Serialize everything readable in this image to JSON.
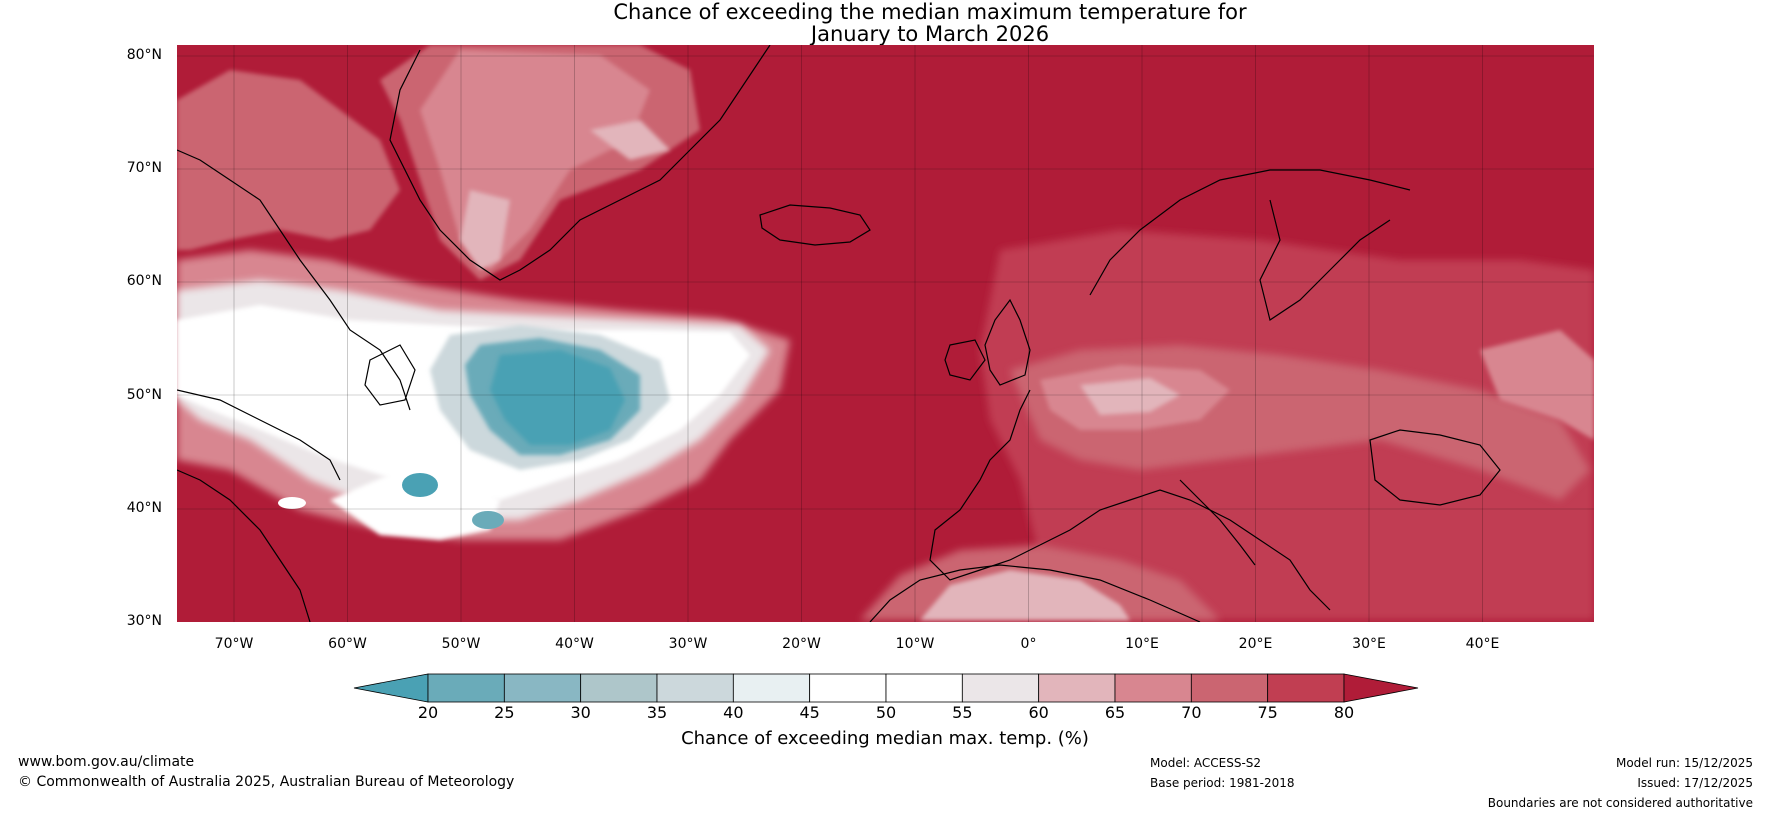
{
  "title": {
    "line1": "Chance of exceeding the median maximum temperature for",
    "line2": "January to March 2026"
  },
  "map": {
    "lat_labels": [
      "80°N",
      "70°N",
      "60°N",
      "50°N",
      "40°N",
      "30°N"
    ],
    "lon_labels": [
      "70°W",
      "60°W",
      "50°W",
      "40°W",
      "30°W",
      "20°W",
      "10°W",
      "0°",
      "10°E",
      "20°E",
      "30°E",
      "40°E"
    ],
    "extent": {
      "lon_min": -75,
      "lon_max": 50,
      "lat_min": 30,
      "lat_max": 81
    }
  },
  "colorbar": {
    "ticks": [
      "20",
      "25",
      "30",
      "35",
      "40",
      "45",
      "50",
      "55",
      "60",
      "65",
      "70",
      "75",
      "80"
    ],
    "colors": [
      "#4aa1b4",
      "#6aabb9",
      "#89b7c3",
      "#aec6ca",
      "#ccd8dc",
      "#e8f0f2",
      "#ffffff",
      "#ffffff",
      "#ebe6e8",
      "#e2b5bb",
      "#d88690",
      "#cb6571",
      "#c13e52",
      "#b01c38"
    ],
    "label": "Chance of exceeding median max. temp. (%)"
  },
  "footer": {
    "website": "www.bom.gov.au/climate",
    "copyright": "© Commonwealth of Australia 2025, Australian Bureau of Meteorology",
    "model": "Model: ACCESS-S2",
    "base_period": "Base period: 1981-2018",
    "model_run": "Model run: 15/12/2025",
    "issued": "Issued: 17/12/2025",
    "disclaimer": "Boundaries are not considered authoritative"
  }
}
